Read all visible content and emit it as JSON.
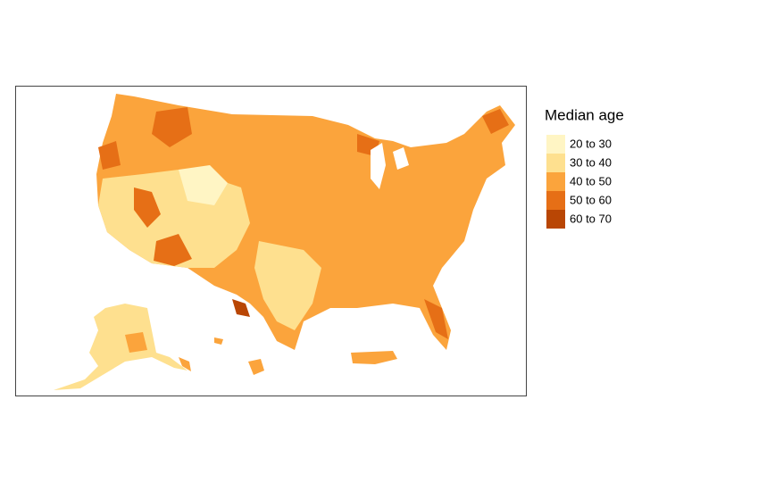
{
  "legend": {
    "title": "Median age",
    "items": [
      {
        "label": "20 to 30",
        "color": "#fff5c4"
      },
      {
        "label": "30 to 40",
        "color": "#fee08f"
      },
      {
        "label": "40 to 50",
        "color": "#fba43c"
      },
      {
        "label": "50 to 60",
        "color": "#e66f16"
      },
      {
        "label": "60 to 70",
        "color": "#b94604"
      }
    ]
  }
}
